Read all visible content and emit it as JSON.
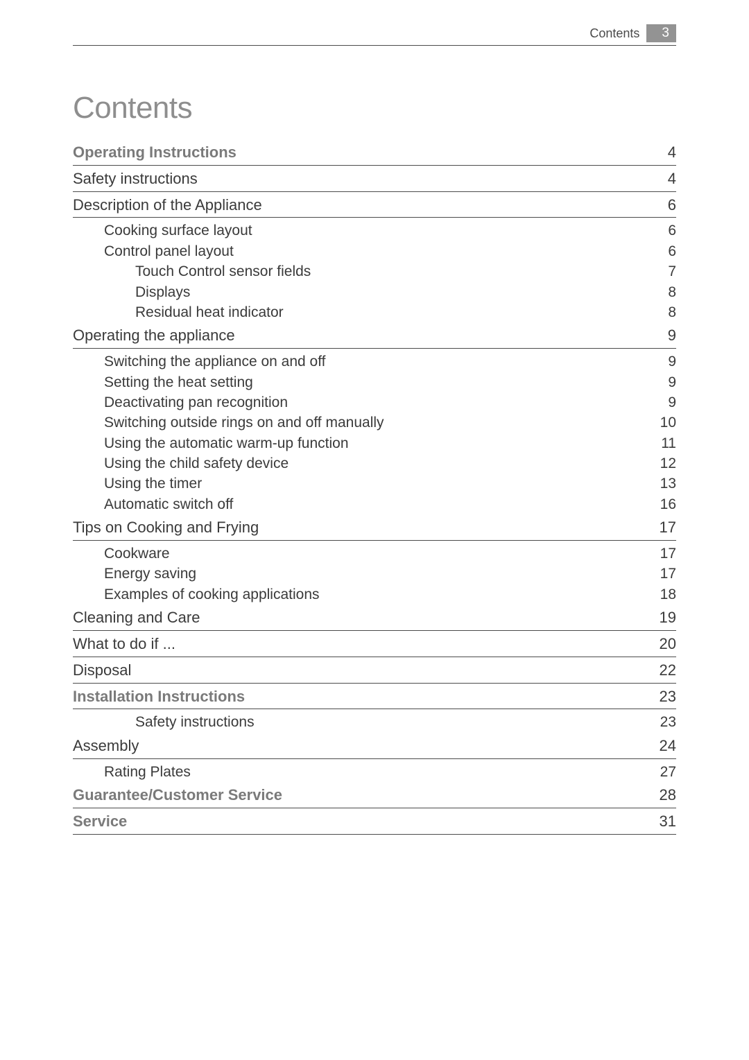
{
  "header": {
    "label": "Contents",
    "pageNumber": "3"
  },
  "title": "Contents",
  "entries": [
    {
      "level": "section",
      "label": "Operating Instructions",
      "page": "4"
    },
    {
      "level": "chapter",
      "label": "Safety instructions",
      "page": "4"
    },
    {
      "level": "chapter",
      "label": "Description of the Appliance",
      "page": "6"
    },
    {
      "level": "sub1",
      "label": "Cooking surface layout",
      "page": "6"
    },
    {
      "level": "sub1",
      "label": "Control panel layout",
      "page": "6"
    },
    {
      "level": "sub2",
      "label": "Touch Control sensor fields",
      "page": "7"
    },
    {
      "level": "sub2",
      "label": "Displays",
      "page": "8"
    },
    {
      "level": "sub2",
      "label": "Residual heat indicator",
      "page": "8"
    },
    {
      "level": "chapter",
      "label": "Operating the appliance",
      "page": "9"
    },
    {
      "level": "sub1",
      "label": "Switching the appliance on and off",
      "page": "9"
    },
    {
      "level": "sub1",
      "label": "Setting the heat setting",
      "page": "9"
    },
    {
      "level": "sub1",
      "label": "Deactivating pan recognition",
      "page": "9"
    },
    {
      "level": "sub1",
      "label": "Switching outside rings on and off manually",
      "page": "10"
    },
    {
      "level": "sub1",
      "label": "Using the automatic warm-up function",
      "page": "11"
    },
    {
      "level": "sub1",
      "label": "Using the child safety device",
      "page": "12"
    },
    {
      "level": "sub1",
      "label": "Using the timer",
      "page": "13"
    },
    {
      "level": "sub1",
      "label": "Automatic switch off",
      "page": "16"
    },
    {
      "level": "chapter",
      "label": "Tips on Cooking and Frying",
      "page": "17"
    },
    {
      "level": "sub1",
      "label": "Cookware",
      "page": "17"
    },
    {
      "level": "sub1",
      "label": "Energy saving",
      "page": "17"
    },
    {
      "level": "sub1",
      "label": "Examples of cooking applications",
      "page": "18"
    },
    {
      "level": "chapter",
      "label": "Cleaning and Care",
      "page": "19"
    },
    {
      "level": "chapter",
      "label": "What to do if ...",
      "page": "20"
    },
    {
      "level": "chapter",
      "label": "Disposal",
      "page": "22"
    },
    {
      "level": "section",
      "label": "Installation Instructions",
      "page": "23"
    },
    {
      "level": "sub2",
      "label": "Safety instructions",
      "page": "23"
    },
    {
      "level": "chapter",
      "label": "Assembly",
      "page": "24"
    },
    {
      "level": "sub1",
      "label": "Rating Plates",
      "page": "27"
    },
    {
      "level": "section",
      "label": "Guarantee/Customer Service",
      "page": "28"
    },
    {
      "level": "section",
      "label": "Service",
      "page": "31"
    }
  ]
}
